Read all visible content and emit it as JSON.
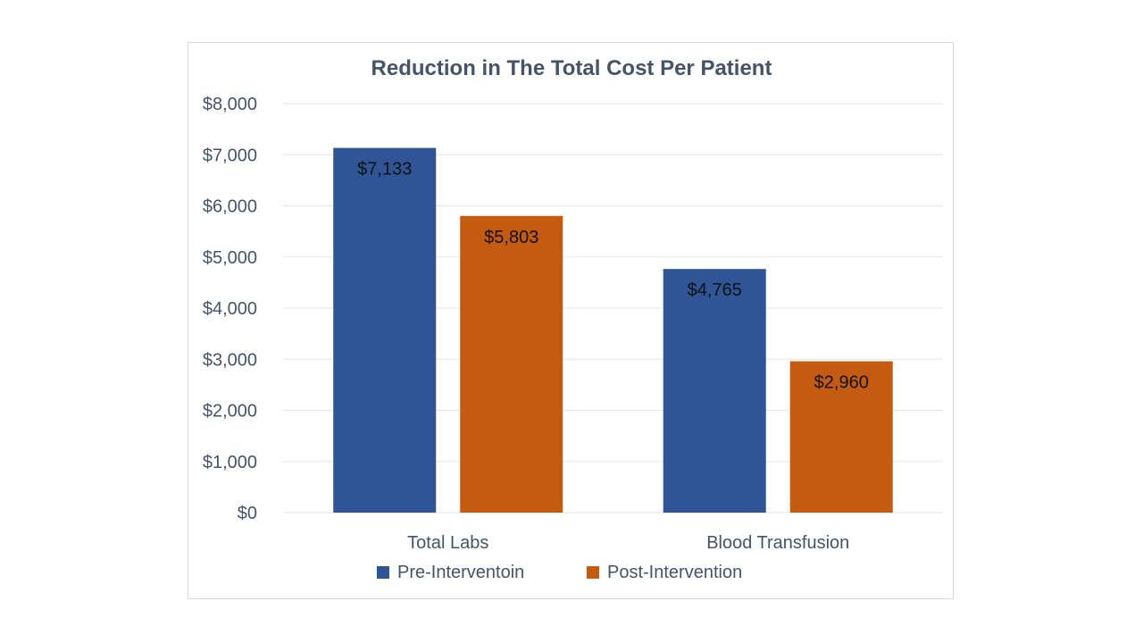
{
  "chart_data": {
    "type": "bar",
    "title": "Reduction in The Total Cost Per Patient",
    "categories": [
      "Total Labs",
      "Blood Transfusion"
    ],
    "series": [
      {
        "name": "Pre-Interventoin",
        "values": [
          7133,
          4765
        ],
        "labels": [
          "$7,133",
          "$4,765"
        ],
        "color": "#2f5597"
      },
      {
        "name": "Post-Intervention",
        "values": [
          5803,
          2960
        ],
        "labels": [
          "$5,803",
          "$2,960"
        ],
        "color": "#c55a11"
      }
    ],
    "ylim": [
      0,
      8000
    ],
    "yticks": [
      0,
      1000,
      2000,
      3000,
      4000,
      5000,
      6000,
      7000,
      8000
    ],
    "ytick_labels": [
      "$0",
      "$1,000",
      "$2,000",
      "$3,000",
      "$4,000",
      "$5,000",
      "$6,000",
      "$7,000",
      "$8,000"
    ],
    "grid": true,
    "legend_position": "bottom",
    "colors": {
      "gridline": "#e6e6e6",
      "text": "#44546a"
    }
  }
}
